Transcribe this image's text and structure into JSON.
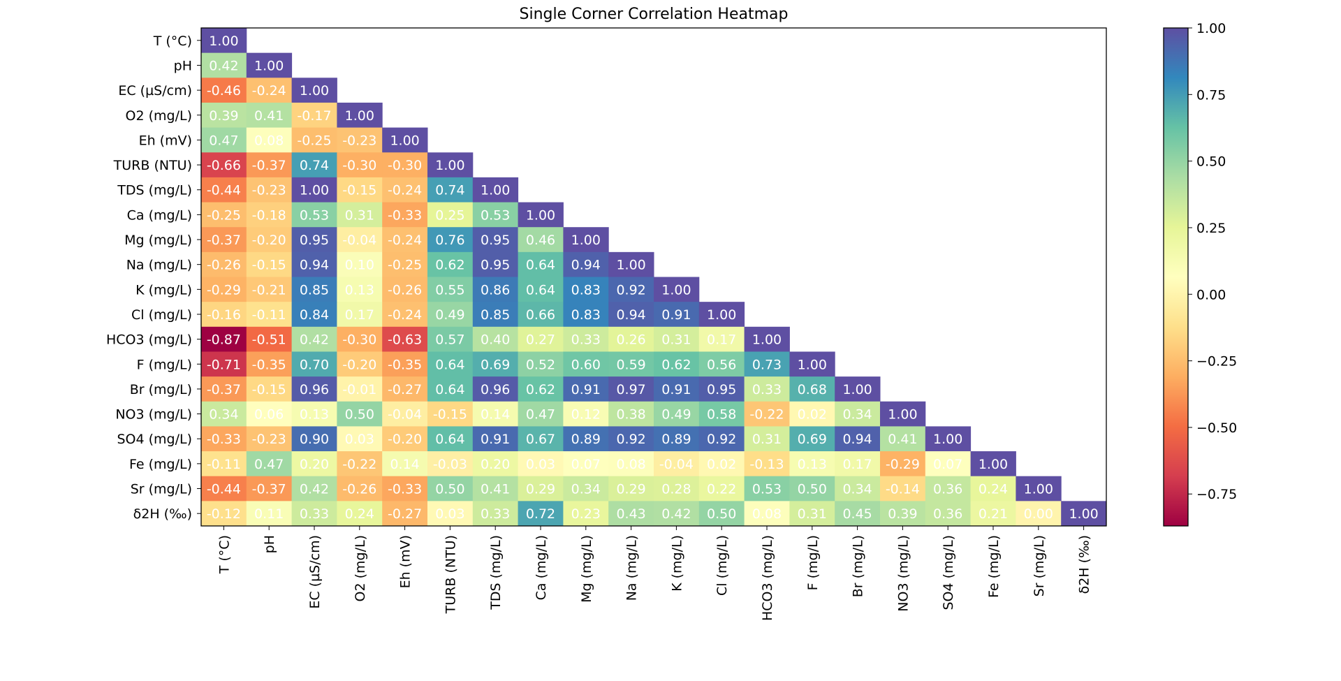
{
  "chart_data": {
    "type": "heatmap",
    "title": "Single Corner Correlation Heatmap",
    "colormap": "Spectral",
    "vmin": -0.87,
    "vmax": 1.0,
    "labels": [
      "T (°C)",
      "pH",
      "EC (µS/cm)",
      "O2 (mg/L)",
      "Eh (mV)",
      "TURB (NTU)",
      "TDS (mg/L)",
      "Ca (mg/L)",
      "Mg (mg/L)",
      "Na (mg/L)",
      "K (mg/L)",
      "Cl (mg/L)",
      "HCO3  (mg/L)",
      "F (mg/L)",
      "Br (mg/L)",
      "NO3 (mg/L)",
      "SO4 (mg/L)",
      "Fe (mg/L)",
      "Sr (mg/L)",
      "δ2H (‰)"
    ],
    "matrix": [
      [
        1.0
      ],
      [
        0.42,
        1.0
      ],
      [
        -0.46,
        -0.24,
        1.0
      ],
      [
        0.39,
        0.41,
        -0.17,
        1.0
      ],
      [
        0.47,
        0.08,
        -0.25,
        -0.23,
        1.0
      ],
      [
        -0.66,
        -0.37,
        0.74,
        -0.3,
        -0.3,
        1.0
      ],
      [
        -0.44,
        -0.23,
        1.0,
        -0.15,
        -0.24,
        0.74,
        1.0
      ],
      [
        -0.25,
        -0.18,
        0.53,
        0.31,
        -0.33,
        0.25,
        0.53,
        1.0
      ],
      [
        -0.37,
        -0.2,
        0.95,
        -0.04,
        -0.24,
        0.76,
        0.95,
        0.46,
        1.0
      ],
      [
        -0.26,
        -0.15,
        0.94,
        0.1,
        -0.25,
        0.62,
        0.95,
        0.64,
        0.94,
        1.0
      ],
      [
        -0.29,
        -0.21,
        0.85,
        0.13,
        -0.26,
        0.55,
        0.86,
        0.64,
        0.83,
        0.92,
        1.0
      ],
      [
        -0.16,
        -0.11,
        0.84,
        0.17,
        -0.24,
        0.49,
        0.85,
        0.66,
        0.83,
        0.94,
        0.91,
        1.0
      ],
      [
        -0.87,
        -0.51,
        0.42,
        -0.3,
        -0.63,
        0.57,
        0.4,
        0.27,
        0.33,
        0.26,
        0.31,
        0.17,
        1.0
      ],
      [
        -0.71,
        -0.35,
        0.7,
        -0.2,
        -0.35,
        0.64,
        0.69,
        0.52,
        0.6,
        0.59,
        0.62,
        0.56,
        0.73,
        1.0
      ],
      [
        -0.37,
        -0.15,
        0.96,
        -0.01,
        -0.27,
        0.64,
        0.96,
        0.62,
        0.91,
        0.97,
        0.91,
        0.95,
        0.33,
        0.68,
        1.0
      ],
      [
        0.34,
        0.06,
        0.13,
        0.5,
        -0.04,
        -0.15,
        0.14,
        0.47,
        0.12,
        0.38,
        0.49,
        0.58,
        -0.22,
        0.02,
        0.34,
        1.0
      ],
      [
        -0.33,
        -0.23,
        0.9,
        0.03,
        -0.2,
        0.64,
        0.91,
        0.67,
        0.89,
        0.92,
        0.89,
        0.92,
        0.31,
        0.69,
        0.94,
        0.41,
        1.0
      ],
      [
        -0.11,
        0.47,
        0.2,
        -0.22,
        0.14,
        -0.03,
        0.2,
        0.03,
        0.07,
        0.08,
        -0.04,
        0.02,
        -0.13,
        0.13,
        0.17,
        -0.29,
        0.07,
        1.0
      ],
      [
        -0.44,
        -0.37,
        0.42,
        -0.26,
        -0.33,
        0.5,
        0.41,
        0.29,
        0.34,
        0.29,
        0.28,
        0.22,
        0.53,
        0.5,
        0.34,
        -0.14,
        0.36,
        0.24,
        1.0
      ],
      [
        -0.12,
        0.11,
        0.33,
        0.24,
        -0.27,
        0.03,
        0.33,
        0.72,
        0.23,
        0.43,
        0.42,
        0.5,
        0.08,
        0.31,
        0.45,
        0.39,
        0.36,
        0.21,
        0.0,
        1.0
      ]
    ],
    "colorbar_ticks": [
      "1.00",
      "0.75",
      "0.50",
      "0.25",
      "0.00",
      "−0.25",
      "−0.50",
      "−0.75"
    ],
    "colorbar_tick_values": [
      1.0,
      0.75,
      0.5,
      0.25,
      0.0,
      -0.25,
      -0.5,
      -0.75
    ]
  }
}
